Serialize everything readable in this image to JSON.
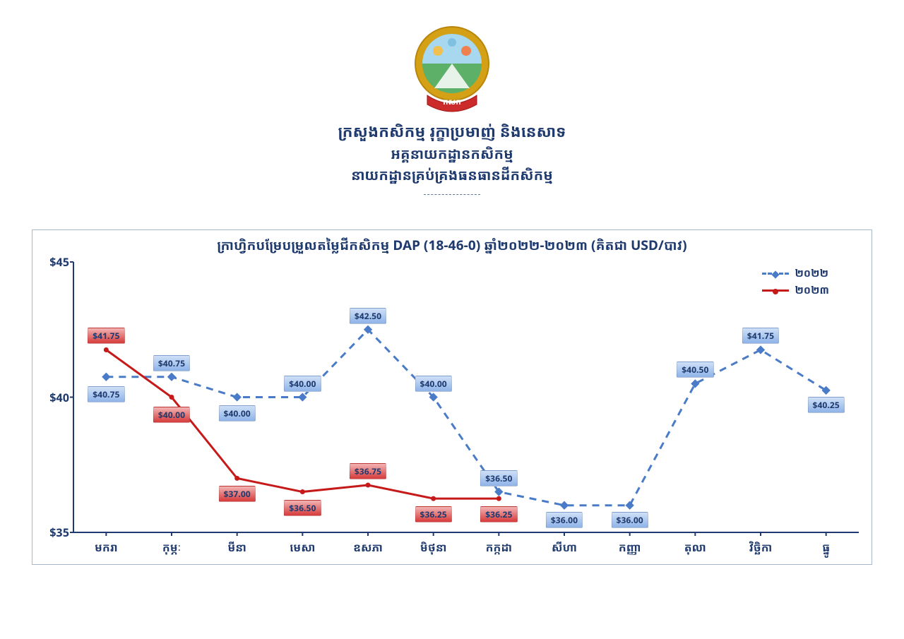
{
  "header": {
    "line1": "ក្រសួងកសិកម្ម រុក្ខាប្រមាញ់ និងនេសាទ",
    "line2": "អគ្គនាយកដ្ឋានកសិកម្ម",
    "line3": "នាយកដ្ឋានគ្រប់គ្រងធនធានដីកសិកម្ម"
  },
  "emblem": {
    "outer_color": "#d4a015",
    "inner_sky": "#a8d8f0",
    "inner_field": "#5db068",
    "banner_color": "#cc2b2b",
    "banner_text": "កសក"
  },
  "chart": {
    "type": "line",
    "title": "ក្រាហ្វិកបម្រែបម្រួលតម្លៃជីកសិកម្ម DAP (18-46-0) ឆ្នាំ២០២២-២០២៣ (គិតជា USD/បាវ)",
    "title_color": "#1f3a6e",
    "background_color": "#ffffff",
    "border_color": "#a8b8cc",
    "axis_color": "#1f3a6e",
    "tick_color": "#1f3a6e",
    "ylim": [
      35,
      45
    ],
    "yticks": [
      35,
      40,
      45
    ],
    "ytick_labels": [
      "$35",
      "$40",
      "$45"
    ],
    "y_tick_fontsize": 16,
    "x_categories": [
      "មករា",
      "កុម្ភៈ",
      "មីនា",
      "មេសា",
      "ឧសភា",
      "មិថុនា",
      "កក្កដា",
      "សីហា",
      "កញ្ញា",
      "តុលា",
      "វិច្ឆិកា",
      "ធ្នូ"
    ],
    "x_tick_fontsize": 16,
    "legend": {
      "position": "top-right",
      "items": [
        {
          "label": "២០២២",
          "key": "s2022"
        },
        {
          "label": "២០២៣",
          "key": "s2023"
        }
      ]
    },
    "series": {
      "s2022": {
        "label": "២០២២",
        "color": "#4a7bc8",
        "line_style": "dashed",
        "line_width": 3,
        "marker": "diamond",
        "marker_size": 8,
        "label_bg_top": "#cfe0f7",
        "label_bg_bot": "#8eb3e8",
        "values": [
          40.75,
          40.75,
          40.0,
          40.0,
          42.5,
          40.0,
          36.5,
          36.0,
          36.0,
          40.5,
          41.75,
          40.25
        ],
        "value_labels": [
          "$40.75",
          "$40.75",
          "$40.00",
          "$40.00",
          "$42.50",
          "$40.00",
          "$36.50",
          "$36.00",
          "$36.00",
          "$40.50",
          "$41.75",
          "$40.25"
        ],
        "label_dy": [
          22,
          -22,
          20,
          -22,
          -22,
          -22,
          -22,
          18,
          18,
          -22,
          -22,
          18
        ]
      },
      "s2023": {
        "label": "២០២៣",
        "color": "#c61a1a",
        "line_style": "solid",
        "line_width": 3,
        "marker": "circle",
        "marker_size": 7,
        "label_bg_top": "#f3b4b4",
        "label_bg_bot": "#d63a3a",
        "values": [
          41.75,
          40.0,
          37.0,
          36.5,
          36.75,
          36.25,
          36.25
        ],
        "value_labels": [
          "$41.75",
          "$40.00",
          "$37.00",
          "$36.50",
          "$36.75",
          "$36.25",
          "$36.25"
        ],
        "label_dy": [
          -22,
          22,
          20,
          20,
          -22,
          20,
          20
        ]
      }
    }
  }
}
